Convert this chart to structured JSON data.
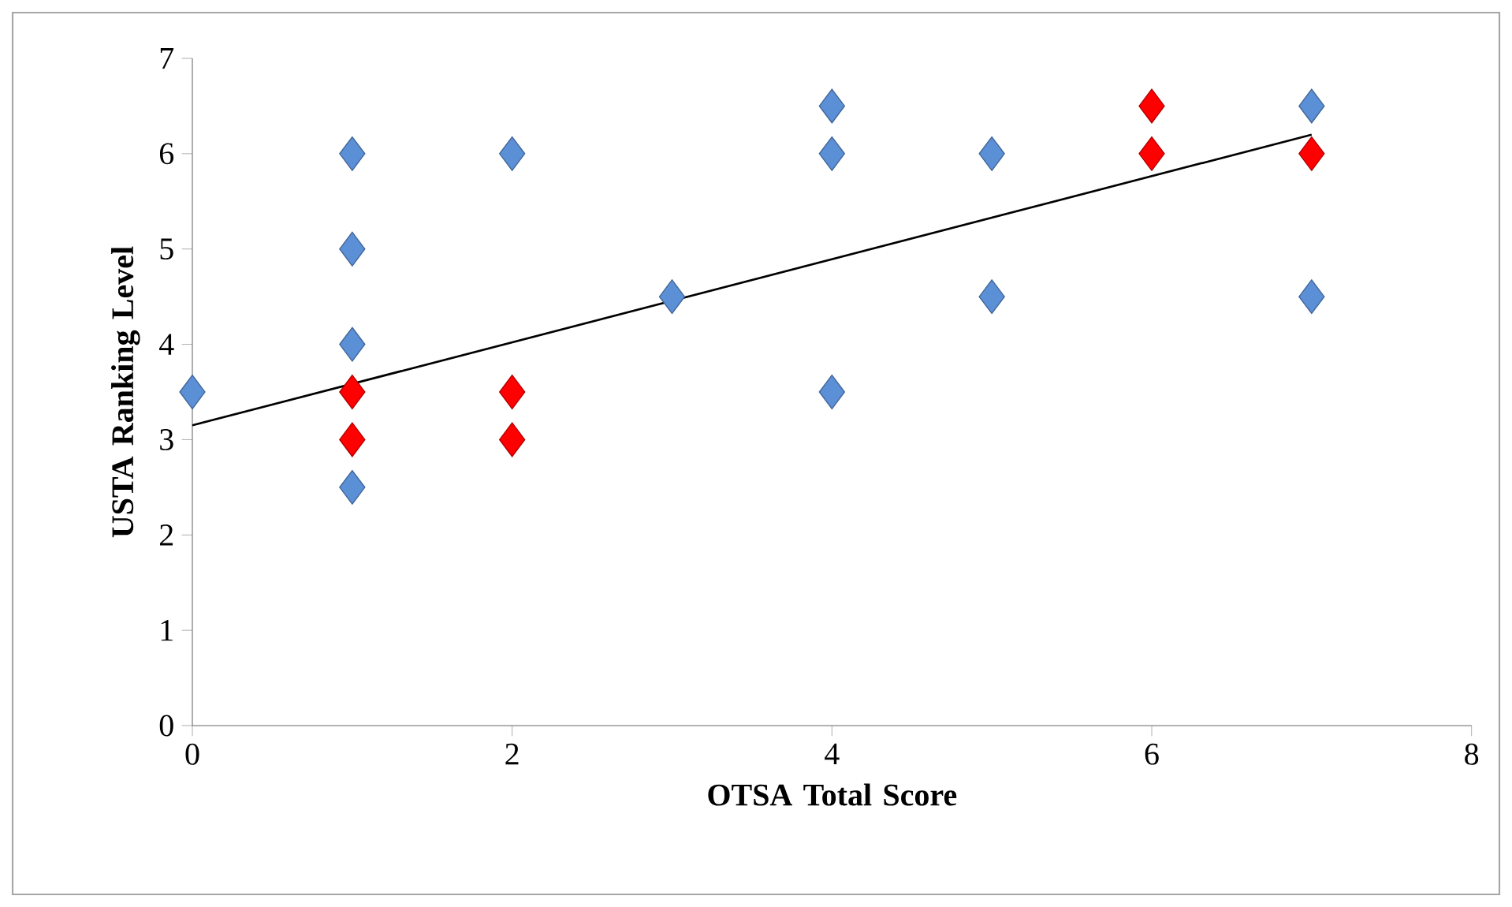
{
  "chart_data": {
    "type": "scatter",
    "xlabel": "OTSA Total Score",
    "ylabel": "USTA Ranking Level",
    "xlim": [
      0,
      8
    ],
    "ylim": [
      0,
      7
    ],
    "xticks": [
      0,
      2,
      4,
      6,
      8
    ],
    "yticks": [
      0,
      1,
      2,
      3,
      4,
      5,
      6,
      7
    ],
    "marker": "diamond",
    "series": [
      {
        "color": "#5b8fd6",
        "x": [
          0,
          1,
          1,
          1,
          1,
          2,
          3,
          4,
          4,
          4,
          5,
          5,
          7,
          7
        ],
        "values": [
          3.5,
          6,
          5,
          4,
          2.5,
          6,
          4.5,
          6.5,
          6,
          3.5,
          6,
          4.5,
          6.5,
          4.5
        ]
      },
      {
        "color": "#ff0000",
        "x": [
          1,
          1,
          2,
          2,
          6,
          6,
          7
        ],
        "values": [
          3.5,
          3,
          3.5,
          3,
          6.5,
          6,
          6
        ]
      },
      {
        "type": "line",
        "color": "#000000",
        "marker": "none",
        "line_style": "solid",
        "x": [
          0,
          7
        ],
        "values": [
          3.15,
          6.2
        ]
      }
    ]
  }
}
